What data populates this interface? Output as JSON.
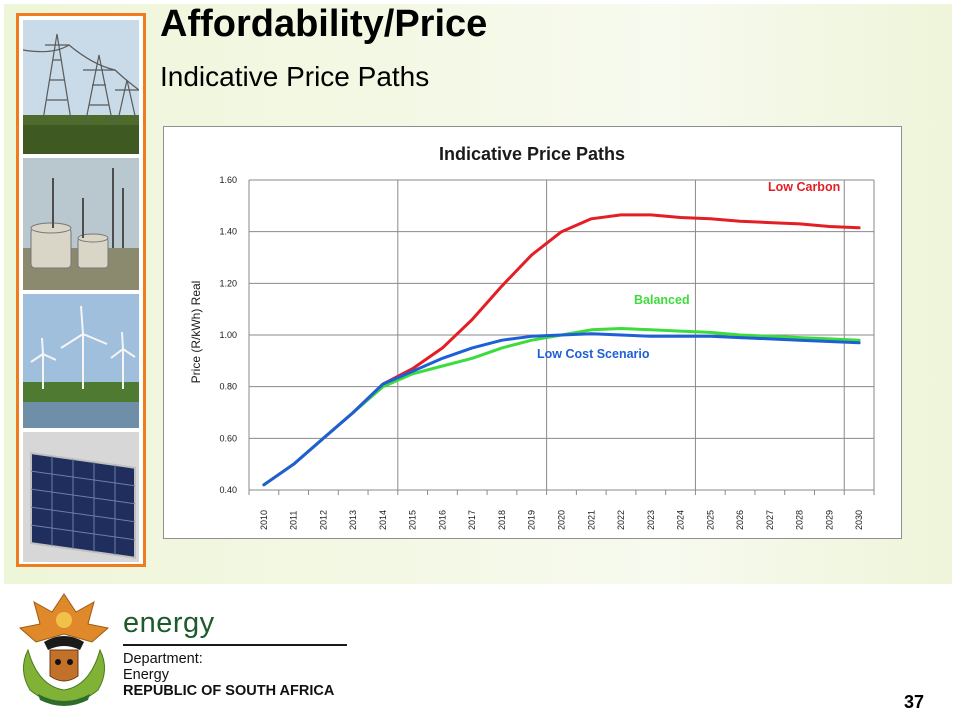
{
  "slide": {
    "title": "Affordability/Price",
    "subtitle": "Indicative Price Paths",
    "page_number": "37"
  },
  "branding": {
    "energy_word": "energy",
    "dept_line1": "Department:",
    "dept_line2": "Energy",
    "dept_line3": "REPUBLIC OF SOUTH AFRICA"
  },
  "colors": {
    "accent_orange": "#f07c21",
    "energy_green": "#1d5a2c"
  },
  "chart_data": {
    "type": "line",
    "title": "Indicative Price Paths",
    "ylabel": "Price (R/kWh) Real",
    "xlabel": "",
    "ylim": [
      0.4,
      1.6
    ],
    "yticks": [
      "0.40",
      "0.60",
      "0.80",
      "1.00",
      "1.20",
      "1.40",
      "1.60"
    ],
    "categories": [
      "2010",
      "2011",
      "2012",
      "2013",
      "2014",
      "2015",
      "2016",
      "2017",
      "2018",
      "2019",
      "2020",
      "2021",
      "2022",
      "2023",
      "2024",
      "2025",
      "2026",
      "2027",
      "2028",
      "2029",
      "2030"
    ],
    "grid": "horizontal lines at each tick, vertical lines every 5 years",
    "series": [
      {
        "name": "Low Carbon",
        "color": "#e31e24",
        "values": [
          0.42,
          0.5,
          0.6,
          0.7,
          0.81,
          0.87,
          0.95,
          1.06,
          1.19,
          1.31,
          1.4,
          1.45,
          1.465,
          1.465,
          1.455,
          1.45,
          1.44,
          1.435,
          1.43,
          1.42,
          1.415
        ]
      },
      {
        "name": "Balanced",
        "color": "#3ddc3d",
        "values": [
          0.42,
          0.5,
          0.6,
          0.7,
          0.8,
          0.85,
          0.88,
          0.91,
          0.95,
          0.98,
          1.0,
          1.02,
          1.025,
          1.02,
          1.015,
          1.01,
          1.0,
          0.995,
          0.99,
          0.985,
          0.98
        ]
      },
      {
        "name": "Low Cost Scenario",
        "color": "#1f5fd6",
        "values": [
          0.42,
          0.5,
          0.6,
          0.7,
          0.81,
          0.86,
          0.91,
          0.95,
          0.98,
          0.995,
          1.0,
          1.005,
          1.0,
          0.995,
          0.995,
          0.995,
          0.99,
          0.985,
          0.98,
          0.975,
          0.97
        ]
      }
    ]
  }
}
